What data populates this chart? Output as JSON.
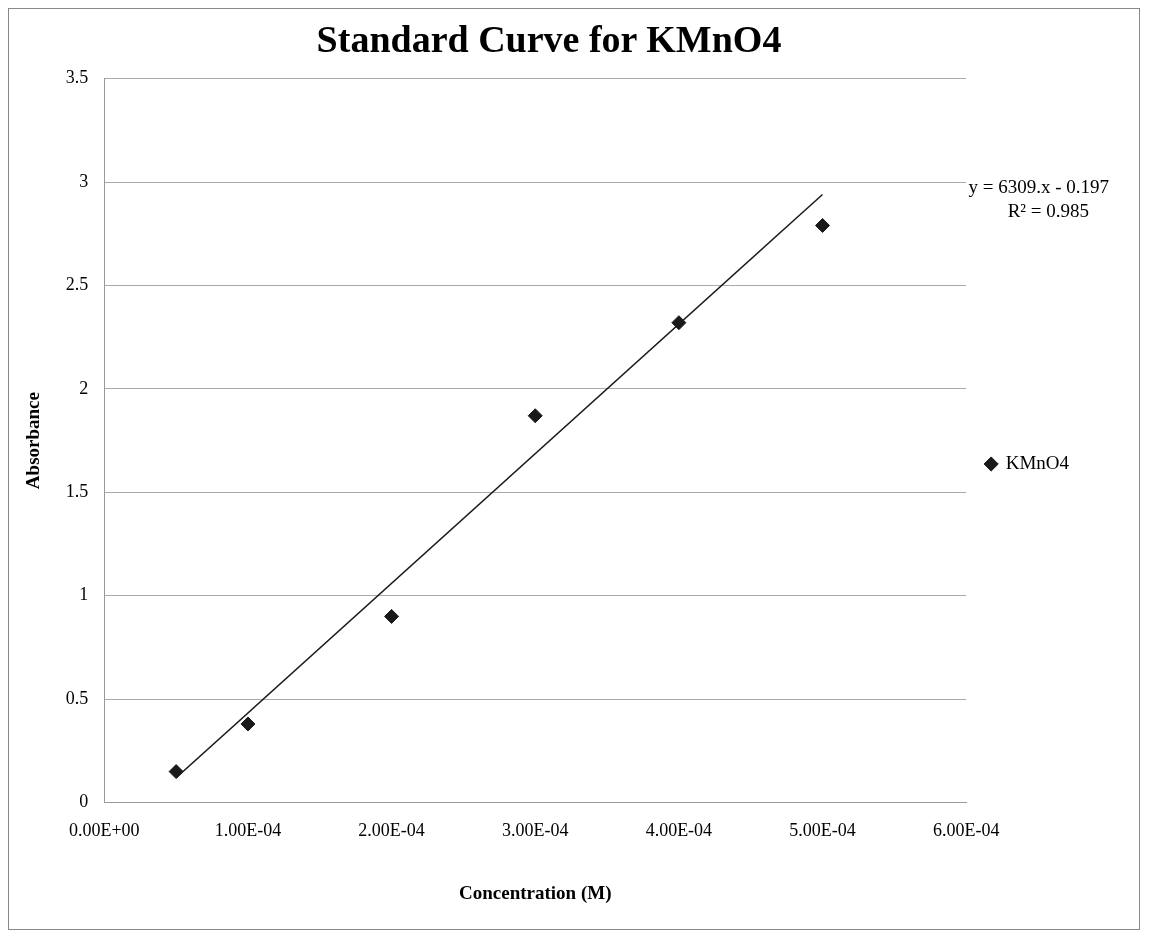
{
  "chart_data": {
    "type": "scatter",
    "title": "Standard Curve for KMnO4",
    "xlabel": "Concentration (M)",
    "ylabel": "Absorbance",
    "series": [
      {
        "name": "KMnO4",
        "type": "scatter",
        "color": "#1a1a1a",
        "marker": "diamond",
        "x": [
          5e-05,
          0.0001,
          0.0002,
          0.0003,
          0.0004,
          0.0005
        ],
        "values": [
          0.15,
          0.38,
          0.9,
          1.87,
          2.32,
          2.79
        ]
      },
      {
        "type": "line",
        "color": "#1a1a1a",
        "marker": "none",
        "line_style": "solid",
        "x": [
          5e-05,
          0.0005
        ],
        "values": [
          0.12,
          2.94
        ]
      }
    ],
    "xlim": [
      0,
      0.0006
    ],
    "xticks": [
      {
        "value": 0,
        "label": "0.00E+00"
      },
      {
        "value": 0.0001,
        "label": "1.00E-04"
      },
      {
        "value": 0.0002,
        "label": "2.00E-04"
      },
      {
        "value": 0.0003,
        "label": "3.00E-04"
      },
      {
        "value": 0.0004,
        "label": "4.00E-04"
      },
      {
        "value": 0.0005,
        "label": "5.00E-04"
      },
      {
        "value": 0.0006,
        "label": "6.00E-04"
      }
    ],
    "ylim": [
      0,
      3.5
    ],
    "yticks": [
      0,
      0.5,
      1,
      1.5,
      2,
      2.5,
      3,
      3.5
    ],
    "grid": "y",
    "legend": "right",
    "annotations": [
      "y = 6309.x - 0.197",
      "R² = 0.985"
    ]
  }
}
